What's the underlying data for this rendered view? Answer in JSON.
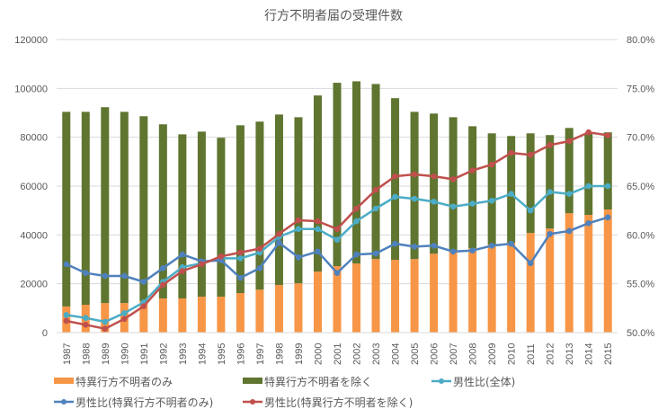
{
  "chart_data": {
    "type": "bar+line",
    "title": "行方不明者届の受理件数",
    "xlabel": "",
    "ylabel": "",
    "y2label": "",
    "categories": [
      "1987",
      "1988",
      "1989",
      "1990",
      "1991",
      "1992",
      "1993",
      "1994",
      "1995",
      "1996",
      "1997",
      "1998",
      "1999",
      "2000",
      "2001",
      "2002",
      "2003",
      "2004",
      "2005",
      "2006",
      "2007",
      "2008",
      "2009",
      "2010",
      "2011",
      "2012",
      "2013",
      "2014",
      "2015"
    ],
    "ylim": [
      0,
      120000
    ],
    "y_ticks": [
      "0",
      "20000",
      "40000",
      "60000",
      "80000",
      "100000",
      "120000"
    ],
    "y2lim": [
      0.5,
      0.8
    ],
    "y2_ticks": [
      "50.0%",
      "55.0%",
      "60.0%",
      "65.0%",
      "70.0%",
      "75.0%",
      "80.0%"
    ],
    "grid": true,
    "legend_position": "bottom",
    "series": [
      {
        "name": "特異行方不明者のみ",
        "kind": "stacked-bar",
        "axis": "left",
        "color": "#F79646",
        "values": [
          10700,
          11400,
          12100,
          12100,
          12900,
          14000,
          14000,
          14700,
          14700,
          16200,
          17600,
          19500,
          20200,
          25000,
          27200,
          28300,
          30100,
          29800,
          30100,
          32300,
          33800,
          34500,
          36000,
          36800,
          40800,
          42600,
          48900,
          48200,
          50400
        ]
      },
      {
        "name": "特異行方不明者を除く",
        "kind": "stacked-bar",
        "axis": "left",
        "color": "#5F7530",
        "values": [
          79700,
          79000,
          80200,
          78300,
          75700,
          71300,
          67200,
          67600,
          65100,
          68700,
          68800,
          69800,
          68000,
          72100,
          75100,
          74600,
          71700,
          66200,
          60300,
          57400,
          54400,
          50000,
          45600,
          43700,
          40800,
          38300,
          34900,
          33400,
          31600
        ]
      },
      {
        "name": "男性比(全体)",
        "kind": "line",
        "axis": "right",
        "color": "#4BACC6",
        "values": [
          0.518,
          0.515,
          0.511,
          0.52,
          0.531,
          0.552,
          0.567,
          0.571,
          0.576,
          0.576,
          0.582,
          0.598,
          0.606,
          0.606,
          0.595,
          0.614,
          0.627,
          0.639,
          0.637,
          0.634,
          0.629,
          0.632,
          0.635,
          0.642,
          0.625,
          0.644,
          0.642,
          0.65,
          0.65
        ]
      },
      {
        "name": "男性比(特異行方不明者のみ)",
        "kind": "line",
        "axis": "right",
        "color": "#4F81BD",
        "values": [
          0.57,
          0.561,
          0.558,
          0.558,
          0.552,
          0.566,
          0.58,
          0.573,
          0.574,
          0.556,
          0.566,
          0.592,
          0.577,
          0.583,
          0.561,
          0.58,
          0.581,
          0.591,
          0.588,
          0.589,
          0.583,
          0.584,
          0.589,
          0.591,
          0.571,
          0.601,
          0.604,
          0.612,
          0.618
        ]
      },
      {
        "name": "男性比(特異行方不明者を除く)",
        "kind": "line",
        "axis": "right",
        "color": "#C0504D",
        "values": [
          0.512,
          0.508,
          0.504,
          0.514,
          0.527,
          0.549,
          0.563,
          0.57,
          0.578,
          0.582,
          0.586,
          0.601,
          0.615,
          0.614,
          0.606,
          0.627,
          0.646,
          0.66,
          0.662,
          0.66,
          0.657,
          0.666,
          0.672,
          0.684,
          0.682,
          0.692,
          0.696,
          0.705,
          0.702
        ]
      }
    ],
    "legend": [
      {
        "label": "特異行方不明者のみ",
        "symbol": "bar",
        "color": "#F79646"
      },
      {
        "label": "特異行方不明者を除く",
        "symbol": "bar",
        "color": "#5F7530"
      },
      {
        "label": "男性比(全体)",
        "symbol": "line",
        "color": "#4BACC6"
      },
      {
        "label": "男性比(特異行方不明者のみ)",
        "symbol": "line",
        "color": "#4F81BD"
      },
      {
        "label": "男性比(特異行方不明者を除く)",
        "symbol": "line",
        "color": "#C0504D"
      }
    ]
  }
}
